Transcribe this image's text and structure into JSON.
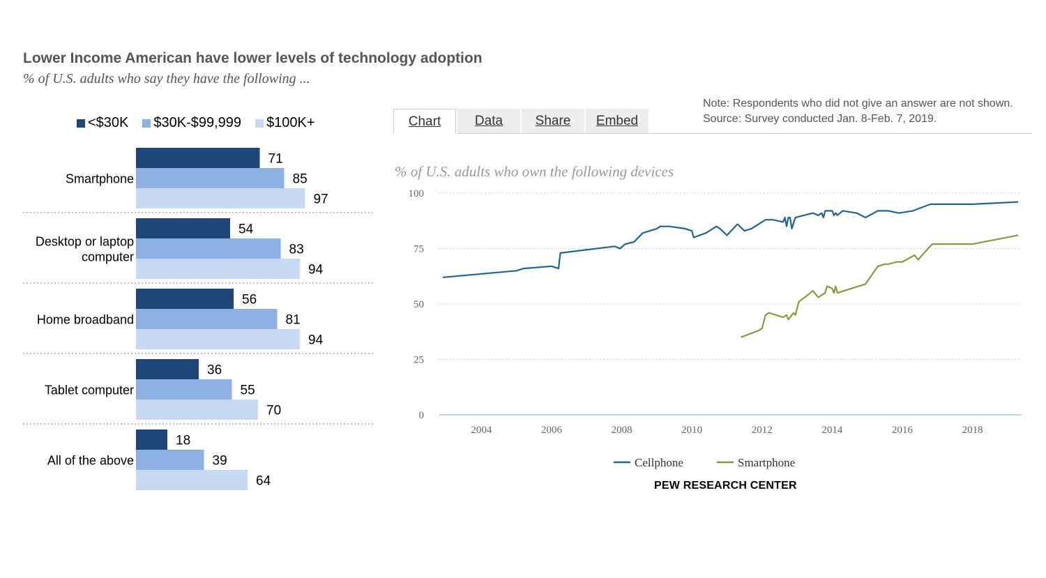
{
  "header": {
    "title": "Lower Income American have lower levels of technology adoption",
    "subtitle": "% of U.S. adults who say they have the following ..."
  },
  "note": {
    "line1": "Note: Respondents who did not give an answer are not shown.",
    "line2": "Source: Survey conducted Jan. 8-Feb. 7, 2019."
  },
  "tabs": [
    {
      "label": "Chart",
      "active": true
    },
    {
      "label": "Data",
      "active": false
    },
    {
      "label": "Share",
      "active": false
    },
    {
      "label": "Embed",
      "active": false
    }
  ],
  "footer": {
    "credit": "PEW RESEARCH CENTER"
  },
  "colors": {
    "dark": "#1f4679",
    "mid": "#8db1e3",
    "light": "#c7d9f2",
    "cellphone": "#1f6398",
    "smartphone": "#8a9a3b"
  },
  "chart_data": [
    {
      "type": "bar",
      "orientation": "horizontal",
      "categories": [
        "Smartphone",
        "Desktop or laptop computer",
        "Home broadband",
        "Tablet computer",
        "All of the above"
      ],
      "series": [
        {
          "name": "<$30K",
          "values": [
            71,
            54,
            56,
            36,
            18
          ]
        },
        {
          "name": "$30K-$99,999",
          "values": [
            85,
            83,
            81,
            55,
            39
          ]
        },
        {
          "name": "$100K+",
          "values": [
            97,
            94,
            94,
            70,
            64
          ]
        }
      ],
      "legend": "top"
    },
    {
      "type": "line",
      "title": "% of U.S. adults who own the following devices",
      "xticks": [
        "2004",
        "2006",
        "2008",
        "2010",
        "2012",
        "2014",
        "2016",
        "2018"
      ],
      "yticks": [
        "0",
        "25",
        "50",
        "75",
        "100"
      ],
      "xlim": [
        2002.8,
        2019.4
      ],
      "ylim": [
        0,
        100
      ],
      "grid": true,
      "legend": "bottom",
      "series": [
        {
          "name": "Cellphone",
          "points": [
            [
              2002.9,
              62
            ],
            [
              2005.0,
              65
            ],
            [
              2005.2,
              66
            ],
            [
              2006.0,
              67
            ],
            [
              2006.2,
              66
            ],
            [
              2006.25,
              73
            ],
            [
              2007.8,
              76
            ],
            [
              2007.95,
              75
            ],
            [
              2008.1,
              77
            ],
            [
              2008.35,
              78
            ],
            [
              2008.6,
              82
            ],
            [
              2009.0,
              84
            ],
            [
              2009.1,
              85
            ],
            [
              2009.35,
              85
            ],
            [
              2009.8,
              84
            ],
            [
              2010.0,
              83
            ],
            [
              2010.05,
              80
            ],
            [
              2010.4,
              82
            ],
            [
              2010.7,
              85
            ],
            [
              2010.8,
              84
            ],
            [
              2011.0,
              81
            ],
            [
              2011.3,
              86
            ],
            [
              2011.5,
              83
            ],
            [
              2011.7,
              84
            ],
            [
              2012.0,
              87
            ],
            [
              2012.1,
              88
            ],
            [
              2012.3,
              88
            ],
            [
              2012.6,
              87
            ],
            [
              2012.65,
              89
            ],
            [
              2012.7,
              85
            ],
            [
              2012.75,
              89
            ],
            [
              2012.8,
              89
            ],
            [
              2012.85,
              84
            ],
            [
              2012.95,
              89
            ],
            [
              2013.2,
              90
            ],
            [
              2013.45,
              91
            ],
            [
              2013.6,
              90
            ],
            [
              2013.7,
              91
            ],
            [
              2013.75,
              89
            ],
            [
              2013.8,
              92
            ],
            [
              2014.0,
              92
            ],
            [
              2014.05,
              90
            ],
            [
              2014.1,
              91
            ],
            [
              2014.15,
              90
            ],
            [
              2014.3,
              92
            ],
            [
              2014.7,
              91
            ],
            [
              2014.95,
              89
            ],
            [
              2015.3,
              92
            ],
            [
              2015.6,
              92
            ],
            [
              2015.9,
              91
            ],
            [
              2016.3,
              92
            ],
            [
              2016.8,
              95
            ],
            [
              2018.0,
              95
            ],
            [
              2019.3,
              96
            ]
          ]
        },
        {
          "name": "Smartphone",
          "points": [
            [
              2011.4,
              35
            ],
            [
              2011.9,
              38
            ],
            [
              2012.0,
              39
            ],
            [
              2012.1,
              45
            ],
            [
              2012.2,
              46
            ],
            [
              2012.6,
              44
            ],
            [
              2012.7,
              45
            ],
            [
              2012.75,
              43
            ],
            [
              2012.9,
              46
            ],
            [
              2012.95,
              45
            ],
            [
              2013.05,
              51
            ],
            [
              2013.3,
              54
            ],
            [
              2013.45,
              56
            ],
            [
              2013.6,
              53
            ],
            [
              2013.8,
              55
            ],
            [
              2013.85,
              58
            ],
            [
              2014.0,
              57
            ],
            [
              2014.05,
              55
            ],
            [
              2014.1,
              58
            ],
            [
              2014.15,
              55
            ],
            [
              2014.95,
              59
            ],
            [
              2015.3,
              67
            ],
            [
              2015.5,
              68
            ],
            [
              2015.6,
              68
            ],
            [
              2015.85,
              69
            ],
            [
              2016.0,
              69
            ],
            [
              2016.35,
              72
            ],
            [
              2016.45,
              70
            ],
            [
              2016.85,
              77
            ],
            [
              2018.0,
              77
            ],
            [
              2019.3,
              81
            ]
          ]
        }
      ]
    }
  ]
}
